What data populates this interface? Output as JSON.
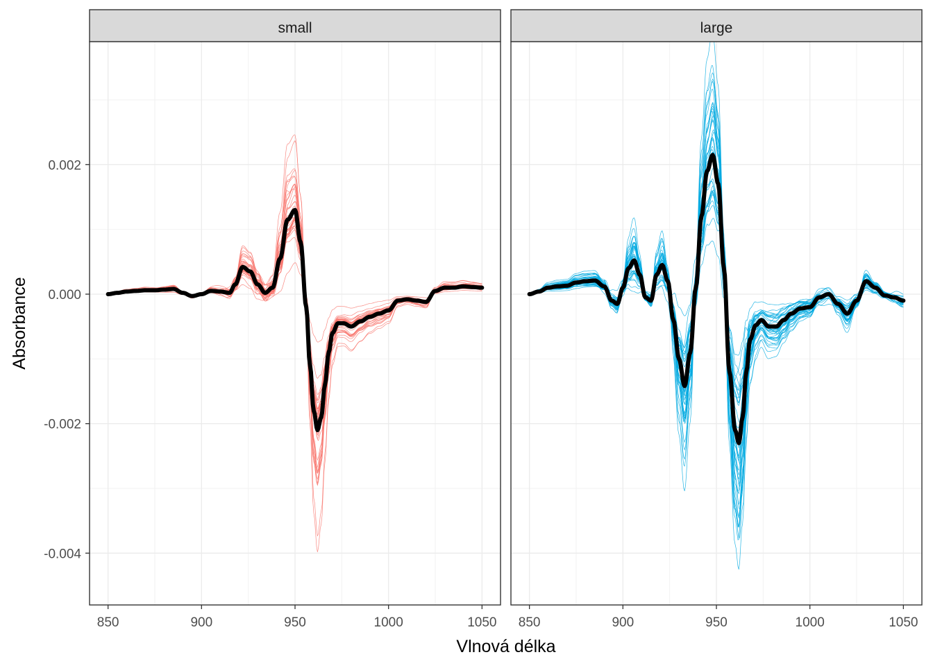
{
  "chart_data": {
    "type": "line",
    "xlabel": "Vlnová délka",
    "ylabel": "Absorbance",
    "xlim": [
      850,
      1050
    ],
    "ylim": [
      -0.0048,
      0.0039
    ],
    "x_ticks": [
      850,
      900,
      950,
      1000,
      1050
    ],
    "x_tick_labels": [
      "850",
      "900",
      "950",
      "1000",
      "1050"
    ],
    "y_ticks": [
      0.002,
      0.0,
      -0.002,
      -0.004
    ],
    "y_tick_labels": [
      "0.002",
      "0.000",
      "-0.002",
      "-0.004"
    ],
    "grid": true,
    "panels": [
      {
        "title": "small",
        "color": "#F8766D",
        "mean_color": "#000000",
        "n_individual": 40,
        "mean": {
          "x": [
            850,
            855,
            860,
            865,
            870,
            875,
            880,
            885,
            890,
            895,
            900,
            905,
            910,
            915,
            918,
            922,
            926,
            930,
            934,
            938,
            942,
            946,
            950,
            953,
            956,
            958,
            960,
            962,
            964,
            966,
            968,
            970,
            973,
            976,
            980,
            985,
            990,
            995,
            1000,
            1005,
            1010,
            1015,
            1020,
            1025,
            1030,
            1035,
            1040,
            1045,
            1050
          ],
          "y": [
            0.0,
            2e-05,
            4e-05,
            5e-05,
            6e-05,
            6e-05,
            7e-05,
            8e-05,
            2e-05,
            -3e-05,
            0.0,
            5e-05,
            4e-05,
            2e-05,
            0.00015,
            0.00042,
            0.00035,
            0.00015,
            2e-05,
            0.0001,
            0.00055,
            0.00115,
            0.0013,
            0.0008,
            -0.0002,
            -0.0011,
            -0.0018,
            -0.0021,
            -0.0019,
            -0.0014,
            -0.0009,
            -0.0006,
            -0.00045,
            -0.00045,
            -0.0005,
            -0.00042,
            -0.00035,
            -0.0003,
            -0.00025,
            -0.0001,
            -8e-05,
            -0.0001,
            -0.00012,
            5e-05,
            0.0001,
            0.0001,
            0.00012,
            0.00011,
            0.0001
          ]
        },
        "spread": {
          "x": [
            850,
            900,
            910,
            918,
            922,
            926,
            930,
            934,
            938,
            942,
            946,
            950,
            953,
            956,
            958,
            960,
            962,
            964,
            966,
            968,
            970,
            973,
            976,
            1000,
            1050
          ],
          "sd": [
            2e-05,
            3e-05,
            6e-05,
            0.0001,
            8e-05,
            0.00012,
            0.00018,
            0.0002,
            0.0002,
            0.00022,
            0.00025,
            0.0002,
            0.00015,
            0.0001,
            0.0001,
            0.00022,
            0.00028,
            0.00022,
            0.00015,
            8e-05,
            6e-05,
            4e-05,
            4e-05,
            4e-05,
            3e-05
          ]
        }
      },
      {
        "title": "large",
        "color": "#00A9E0",
        "mean_color": "#000000",
        "n_individual": 40,
        "mean": {
          "x": [
            850,
            855,
            860,
            865,
            870,
            875,
            880,
            885,
            890,
            894,
            897,
            900,
            903,
            906,
            909,
            912,
            915,
            918,
            921,
            924,
            927,
            930,
            933,
            936,
            939,
            942,
            945,
            948,
            951,
            954,
            957,
            960,
            962,
            964,
            966,
            968,
            971,
            974,
            978,
            982,
            986,
            990,
            995,
            1000,
            1005,
            1010,
            1015,
            1020,
            1025,
            1030,
            1035,
            1040,
            1045,
            1050
          ],
          "y": [
            0.0,
            4e-05,
            0.0001,
            0.00012,
            0.00013,
            0.00018,
            0.0002,
            0.00021,
            0.00012,
            -0.0001,
            -0.00015,
            0.0001,
            0.0004,
            0.00052,
            0.0003,
            -5e-05,
            -0.0001,
            0.0003,
            0.00045,
            0.0002,
            -0.0004,
            -0.001,
            -0.00142,
            -0.0009,
            0.0001,
            0.0012,
            0.0019,
            0.00215,
            0.0017,
            0.0004,
            -0.0012,
            -0.0021,
            -0.0023,
            -0.0019,
            -0.0012,
            -0.0007,
            -0.00048,
            -0.0004,
            -0.0005,
            -0.0005,
            -0.0004,
            -0.0003,
            -0.00022,
            -0.0002,
            -5e-05,
            0.0,
            -0.00015,
            -0.0003,
            -0.0001,
            0.0002,
            0.0001,
            -2e-05,
            -5e-05,
            -0.0001
          ]
        },
        "spread": {
          "x": [
            850,
            880,
            900,
            906,
            912,
            918,
            924,
            930,
            933,
            936,
            942,
            948,
            954,
            960,
            962,
            964,
            968,
            974,
            990,
            1020,
            1050
          ],
          "sd": [
            2e-05,
            4e-05,
            0.00012,
            0.00025,
            0.0001,
            0.0002,
            0.0002,
            0.00035,
            0.00045,
            0.00035,
            0.00035,
            0.0004,
            0.0003,
            0.0005,
            0.0006,
            0.0005,
            0.0002,
            0.00012,
            0.00012,
            0.0001,
            8e-05
          ]
        }
      }
    ]
  }
}
